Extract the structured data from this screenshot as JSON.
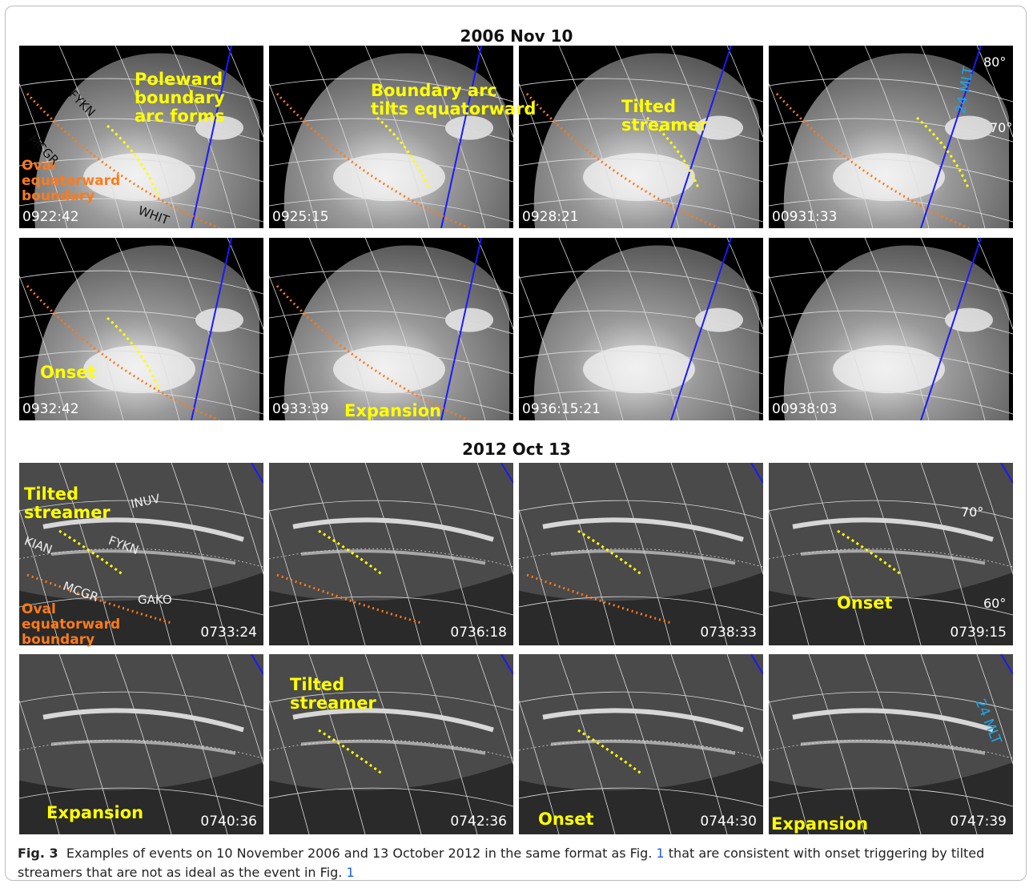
{
  "title_2006": "2006 Nov 10",
  "title_2012": "2012 Oct 13",
  "panels_2006": [
    {
      "time": "0922:42"
    },
    {
      "time": "0925:15"
    },
    {
      "time": "0928:21"
    },
    {
      "time": "00931:33"
    },
    {
      "time": "0932:42"
    },
    {
      "time": "0933:39"
    },
    {
      "time": "0936:15:21"
    },
    {
      "time": "00938:03"
    }
  ],
  "panels_2012": [
    {
      "time": "0733:24"
    },
    {
      "time": "0736:18"
    },
    {
      "time": "0738:33"
    },
    {
      "time": "0739:15"
    },
    {
      "time": "0740:36"
    },
    {
      "time": "0742:36"
    },
    {
      "time": "0744:30"
    },
    {
      "time": "0747:39"
    }
  ],
  "annotations": {
    "poleward": "Poleward\nboundary\narc forms",
    "boundary_tilts": "Boundary arc\ntilts equatorward",
    "tilted_streamer_1": "Tilted\nstreamer",
    "onset_1": "Onset",
    "expansion_1": "Expansion",
    "oval_1": "Oval\nequatorward\nboundary",
    "tilted_streamer_2": "Tilted\nstreamer",
    "oval_2": "Oval\nequatorward\nboundary",
    "onset_2": "Onset",
    "expansion_2": "Expansion",
    "tilted_streamer_3": "Tilted\nstreamer",
    "onset_3": "Onset",
    "expansion_3": "Expansion"
  },
  "stations_2006": {
    "fykn": "FYKN",
    "mcgr": "MCGR",
    "whit": "WHIT"
  },
  "stations_2012": {
    "inuv": "INUV",
    "kian": "KIAN",
    "fykn": "FYKN",
    "mcgr": "MCGR",
    "gako": "GAKO"
  },
  "labels": {
    "lat80": "80°",
    "lat70_2006": "70°",
    "lat70_2012": "70°",
    "lat60": "60°",
    "mlt_2006": "24 MLT",
    "mlt_2012": "24 MLT"
  },
  "caption": {
    "label": "Fig. 3",
    "text_a": "Examples of events on 10 November 2006 and 13 October 2012 in the same format as Fig.",
    "ref_a": "1",
    "text_b": "that are consistent with onset triggering by tilted streamers that are not as ideal as the event in Fig.",
    "ref_b": "1"
  },
  "colors": {
    "annotation": "#ffff00",
    "oval": "#ff7a1a",
    "mlt": "#1fa7e6",
    "meridian": "#1a1aff"
  }
}
